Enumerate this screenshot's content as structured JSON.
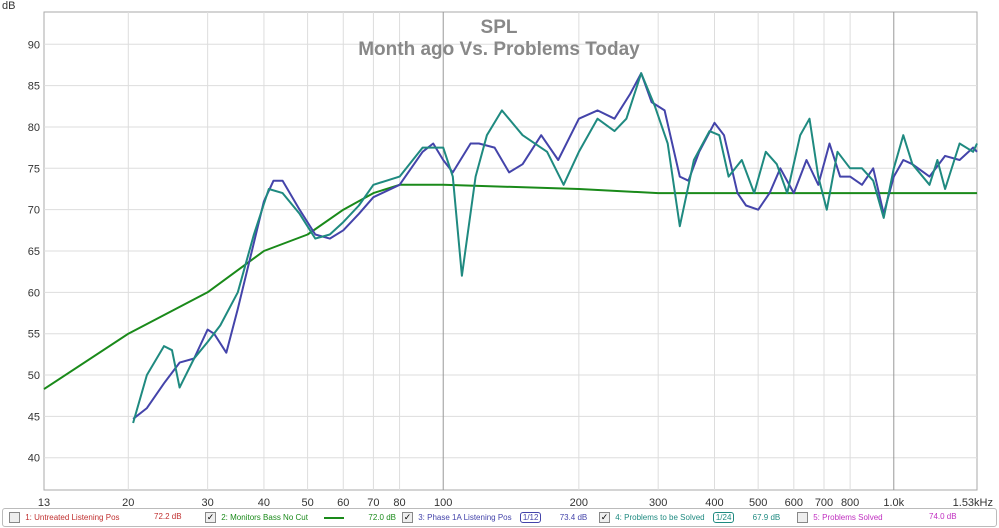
{
  "chart_data": {
    "type": "line",
    "title": "SPL",
    "subtitle": "Month ago Vs. Problems Today",
    "ylabel": "dB",
    "xlabel": "",
    "xscale": "log",
    "xlim": [
      13,
      1530
    ],
    "ylim": [
      36.1,
      93.9
    ],
    "grid": true,
    "x_ticks": [
      13,
      20,
      30,
      40,
      50,
      60,
      70,
      80,
      100,
      200,
      300,
      400,
      500,
      600,
      700,
      800,
      1000,
      1530
    ],
    "x_tick_labels": [
      "13",
      "20",
      "30",
      "40",
      "50",
      "60",
      "70",
      "80",
      "100",
      "200",
      "300",
      "400",
      "500",
      "600",
      "700",
      "800",
      "1.0k",
      "1.53kHz"
    ],
    "y_ticks": [
      40,
      45,
      50,
      55,
      60,
      65,
      70,
      75,
      80,
      85,
      90
    ],
    "series": [
      {
        "name": "2: Monitors Bass No Cut",
        "color": "#1a8a1a",
        "x": [
          13,
          20,
          30,
          40,
          50,
          60,
          70,
          80,
          100,
          200,
          300,
          1530
        ],
        "y": [
          48.3,
          55,
          60,
          65,
          67,
          70,
          72,
          73,
          73,
          72.5,
          72,
          72
        ]
      },
      {
        "name": "3: Phase 1A Listening Pos",
        "color": "#4444aa",
        "x": [
          20.5,
          22,
          24,
          26,
          28,
          30,
          31,
          33,
          35,
          38,
          40,
          42,
          44,
          48,
          52,
          56,
          60,
          65,
          70,
          80,
          90,
          95,
          100,
          105,
          115,
          120,
          130,
          140,
          150,
          165,
          180,
          200,
          220,
          240,
          260,
          275,
          290,
          310,
          335,
          350,
          370,
          400,
          420,
          450,
          470,
          500,
          530,
          560,
          600,
          640,
          680,
          720,
          760,
          800,
          850,
          900,
          950,
          1000,
          1050,
          1100,
          1200,
          1300,
          1400,
          1500,
          1530
        ],
        "y": [
          44.7,
          46,
          49,
          51.5,
          52,
          55.5,
          55,
          52.7,
          58,
          66,
          71,
          73.5,
          73.5,
          70,
          67,
          66.5,
          67.5,
          69.5,
          71.5,
          73,
          77,
          78,
          76,
          74.5,
          78,
          78,
          77.5,
          74.5,
          75.5,
          79,
          76,
          81,
          82,
          81,
          84,
          86.5,
          83,
          82,
          74,
          73.5,
          77,
          80.5,
          79,
          72,
          70.5,
          70,
          72,
          75,
          72,
          76,
          73,
          78,
          74,
          74,
          73,
          75,
          69.5,
          74,
          76,
          75.5,
          74,
          76.5,
          76,
          77.5,
          77
        ]
      },
      {
        "name": "4: Problems to be Solved",
        "color": "#1f8a80",
        "x": [
          20.5,
          22,
          24,
          25,
          26,
          28,
          30,
          32,
          35,
          38,
          41,
          44,
          48,
          52,
          56,
          60,
          65,
          70,
          80,
          90,
          100,
          105,
          110,
          118,
          125,
          135,
          150,
          170,
          185,
          200,
          220,
          240,
          255,
          275,
          295,
          315,
          335,
          360,
          390,
          410,
          430,
          460,
          490,
          520,
          550,
          580,
          620,
          650,
          680,
          710,
          750,
          800,
          850,
          900,
          950,
          1000,
          1050,
          1100,
          1200,
          1250,
          1300,
          1400,
          1500,
          1530
        ],
        "y": [
          44.2,
          50,
          53.5,
          53,
          48.5,
          52,
          54,
          56,
          60,
          67,
          72.5,
          72,
          69.5,
          66.5,
          67,
          68.5,
          70.5,
          73,
          74,
          77.5,
          77.5,
          74,
          62,
          74,
          79,
          82,
          79,
          77,
          73,
          77,
          81,
          79.5,
          81,
          86.5,
          82.5,
          78,
          68,
          76,
          79.5,
          79,
          74,
          76,
          72,
          77,
          75.5,
          72,
          79,
          81,
          74,
          70,
          77,
          75,
          75,
          73.5,
          69,
          75,
          79,
          75.5,
          73,
          76,
          72.5,
          78,
          77,
          78
        ]
      }
    ]
  },
  "legend": [
    {
      "label": "1: Untreated Listening Pos",
      "value": "72.2 dB",
      "checked": false,
      "color": "#c03030"
    },
    {
      "label": "2: Monitors Bass No Cut",
      "value": "72.0 dB",
      "checked": true,
      "color": "#1a8a1a"
    },
    {
      "label": "3: Phase 1A Listening Pos",
      "smoothing": "1/12",
      "value": "73.4 dB",
      "checked": true,
      "color": "#4444aa"
    },
    {
      "label": "4: Problems to be Solved",
      "smoothing": "1/24",
      "value": "67.9 dB",
      "checked": true,
      "color": "#1f8a80"
    },
    {
      "label": "5: Problems Solved",
      "value": "74.0 dB",
      "checked": false,
      "color": "#c030c0"
    }
  ]
}
